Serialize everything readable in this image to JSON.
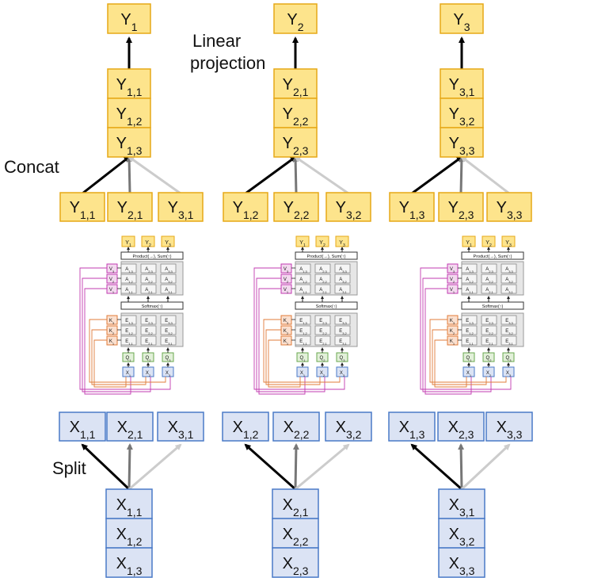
{
  "labels": {
    "linear_projection_line1": "Linear",
    "linear_projection_line2": "projection",
    "concat": "Concat",
    "split": "Split"
  },
  "outputs": [
    "1",
    "2",
    "3"
  ],
  "output_groups": [
    {
      "items": [
        "1,1",
        "1,2",
        "1,3"
      ]
    },
    {
      "items": [
        "2,1",
        "2,2",
        "2,3"
      ]
    },
    {
      "items": [
        "3,1",
        "3,2",
        "3,3"
      ]
    }
  ],
  "concat_inputs": [
    "1,1",
    "2,1",
    "3,1",
    "1,2",
    "2,2",
    "3,2",
    "1,3",
    "2,3",
    "3,3"
  ],
  "split_outputs": [
    "1,1",
    "2,1",
    "3,1",
    "1,2",
    "2,2",
    "3,2",
    "1,3",
    "2,3",
    "3,3"
  ],
  "input_groups": [
    {
      "items": [
        "1,1",
        "1,2",
        "1,3"
      ]
    },
    {
      "items": [
        "2,1",
        "2,2",
        "2,3"
      ]
    },
    {
      "items": [
        "3,1",
        "3,2",
        "3,3"
      ]
    }
  ],
  "mini_block": {
    "top_outputs": [
      "Y1",
      "Y2",
      "Y3"
    ],
    "product_label": "Product(→), Sum(↑)",
    "softmax_label": "Softmax(↑)",
    "values": [
      "V3",
      "V2",
      "V1"
    ],
    "keys": [
      "K3",
      "K2",
      "K1"
    ],
    "queries": [
      "Q1",
      "Q2",
      "Q3"
    ],
    "inputs": [
      "X1",
      "X2",
      "X3"
    ],
    "a_grid": [
      [
        "A1,3",
        "A2,3",
        "A3,3"
      ],
      [
        "A1,2",
        "A2,2",
        "A3,2"
      ],
      [
        "A1,1",
        "A2,1",
        "A3,1"
      ]
    ],
    "e_grid": [
      [
        "E1,3",
        "E2,3",
        "E3,3"
      ],
      [
        "E1,2",
        "E2,2",
        "E3,2"
      ],
      [
        "E1,1",
        "E2,1",
        "E3,1"
      ]
    ]
  },
  "colors": {
    "yellow_fill": "#fde48c",
    "yellow_stroke": "#e6a817",
    "blue_fill": "#dbe3f4",
    "blue_stroke": "#4a7ac7",
    "arrow_black": "#000000",
    "arrow_dark_gray": "#777777",
    "arrow_light_gray": "#cccccc",
    "value_pink": "#c23bb0",
    "key_orange": "#e07b39",
    "query_green": "#6aa84f"
  }
}
